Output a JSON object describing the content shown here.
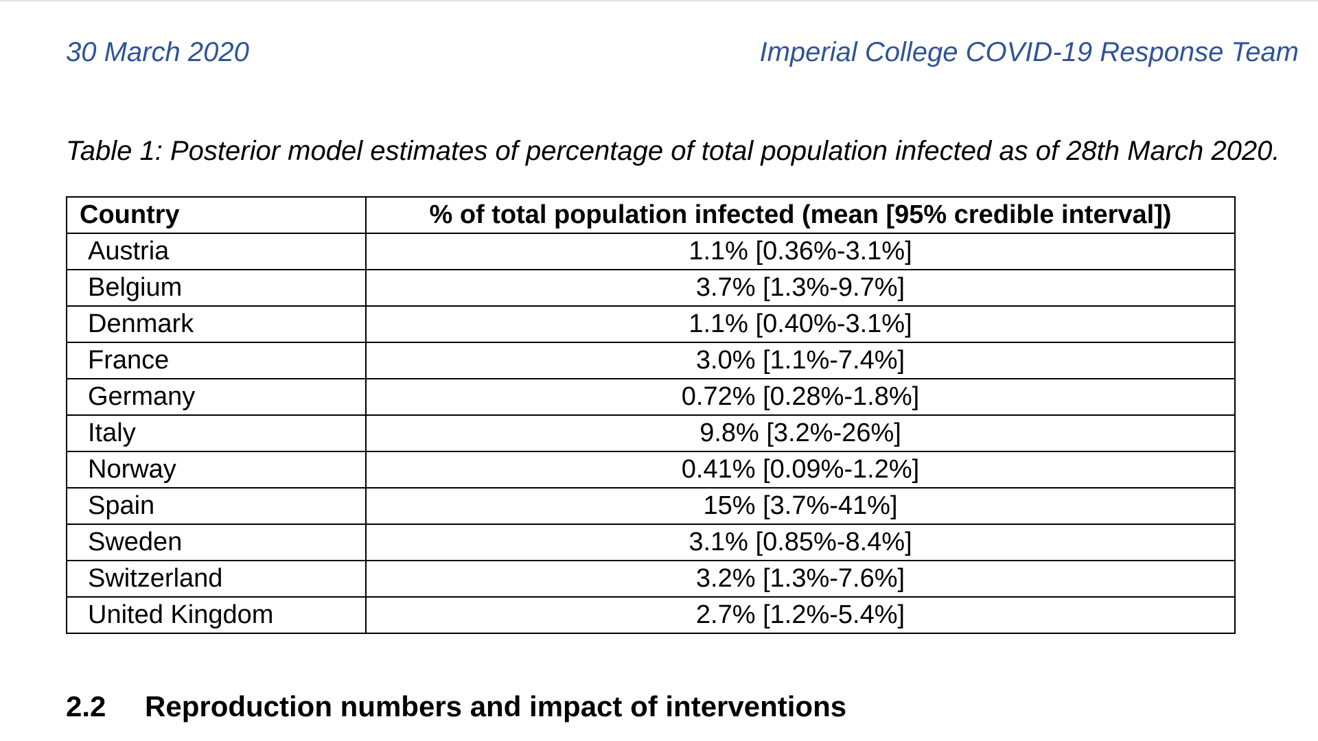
{
  "header": {
    "date": "30 March 2020",
    "organization": "Imperial College COVID-19 Response Team"
  },
  "table": {
    "caption": "Table 1: Posterior model estimates of percentage of total population infected as of 28th March 2020.",
    "columns": [
      "Country",
      "% of total population infected (mean [95% credible interval])"
    ],
    "rows": [
      {
        "country": "Austria",
        "value": "1.1% [0.36%-3.1%]"
      },
      {
        "country": "Belgium",
        "value": "3.7% [1.3%-9.7%]"
      },
      {
        "country": "Denmark",
        "value": "1.1% [0.40%-3.1%]"
      },
      {
        "country": "France",
        "value": "3.0% [1.1%-7.4%]"
      },
      {
        "country": "Germany",
        "value": "0.72% [0.28%-1.8%]"
      },
      {
        "country": "Italy",
        "value": "9.8% [3.2%-26%]"
      },
      {
        "country": "Norway",
        "value": "0.41% [0.09%-1.2%]"
      },
      {
        "country": "Spain",
        "value": "15% [3.7%-41%]"
      },
      {
        "country": "Sweden",
        "value": "3.1% [0.85%-8.4%]"
      },
      {
        "country": "Switzerland",
        "value": "3.2% [1.3%-7.6%]"
      },
      {
        "country": "United Kingdom",
        "value": "2.7% [1.2%-5.4%]"
      }
    ]
  },
  "section": {
    "number": "2.2",
    "title": "Reproduction numbers and impact of interventions"
  },
  "colors": {
    "header_text": "#2f5496",
    "body_text": "#000000",
    "table_border": "#000000"
  }
}
